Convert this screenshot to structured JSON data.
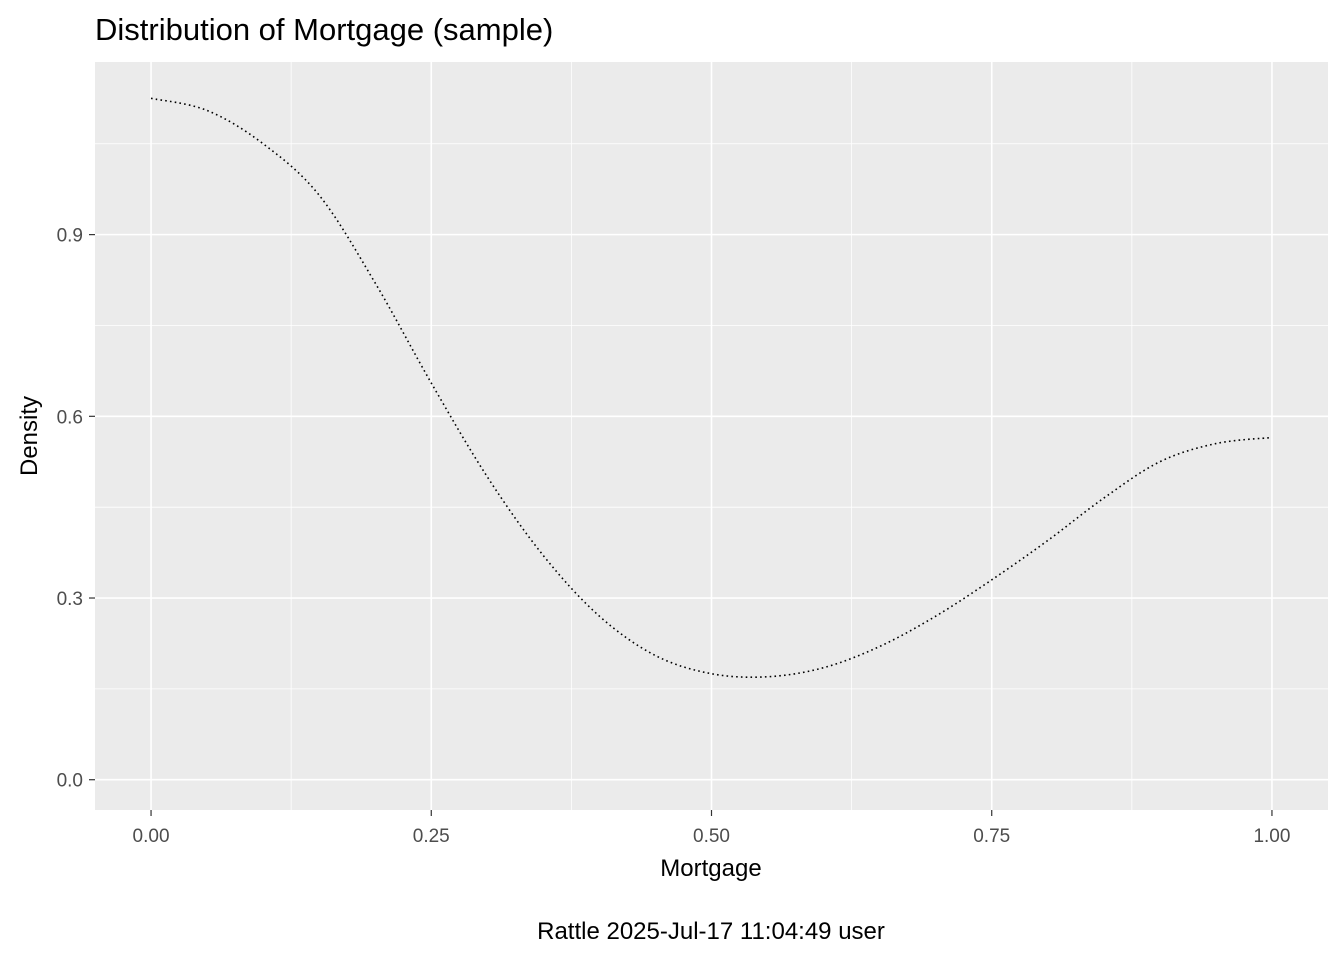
{
  "chart_data": {
    "type": "line",
    "title": "Distribution of Mortgage (sample)",
    "xlabel": "Mortgage",
    "ylabel": "Density",
    "caption": "Rattle 2025-Jul-17 11:04:49 user",
    "xlim": [
      -0.05,
      1.05
    ],
    "ylim": [
      -0.05,
      1.185
    ],
    "x_ticks": [
      0.0,
      0.25,
      0.5,
      0.75,
      1.0
    ],
    "x_tick_labels": [
      "0.00",
      "0.25",
      "0.50",
      "0.75",
      "1.00"
    ],
    "y_ticks": [
      0.0,
      0.3,
      0.6,
      0.9
    ],
    "y_tick_labels": [
      "0.0",
      "0.3",
      "0.6",
      "0.9"
    ],
    "line_style": "dotted",
    "grid": true,
    "colors": {
      "panel_background": "#ebebeb",
      "grid": "#ffffff",
      "line": "#000000",
      "tick_text": "#4d4d4d",
      "tick_mark": "#333333"
    },
    "series": [
      {
        "x": [
          0.0,
          0.05,
          0.1,
          0.15,
          0.2,
          0.25,
          0.3,
          0.35,
          0.4,
          0.45,
          0.5,
          0.55,
          0.6,
          0.65,
          0.7,
          0.75,
          0.8,
          0.85,
          0.9,
          0.95,
          1.0
        ],
        "values": [
          1.125,
          1.105,
          1.05,
          0.965,
          0.82,
          0.655,
          0.5,
          0.37,
          0.27,
          0.205,
          0.175,
          0.17,
          0.185,
          0.22,
          0.27,
          0.33,
          0.395,
          0.465,
          0.525,
          0.555,
          0.565
        ]
      }
    ]
  }
}
